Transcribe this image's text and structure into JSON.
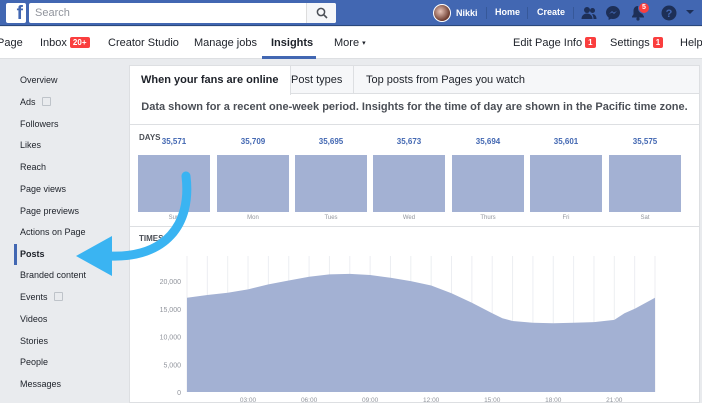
{
  "topbar": {
    "search_placeholder": "Search",
    "user_name": "Nikki",
    "home": "Home",
    "create": "Create",
    "notifications_count": "5",
    "logo": "f"
  },
  "page_tabs": [
    {
      "label": "Page"
    },
    {
      "label": "Inbox",
      "badge": "20+"
    },
    {
      "label": "Creator Studio"
    },
    {
      "label": "Manage jobs"
    },
    {
      "label": "Insights"
    },
    {
      "label": "More"
    },
    {
      "label": "Edit Page Info",
      "badge": "1"
    },
    {
      "label": "Settings",
      "badge": "1"
    },
    {
      "label": "Help"
    }
  ],
  "sidebar": {
    "items": [
      {
        "label": "Overview"
      },
      {
        "label": "Ads"
      },
      {
        "label": "Followers"
      },
      {
        "label": "Likes"
      },
      {
        "label": "Reach"
      },
      {
        "label": "Page views"
      },
      {
        "label": "Page previews"
      },
      {
        "label": "Actions on Page"
      },
      {
        "label": "Posts"
      },
      {
        "label": "Branded content"
      },
      {
        "label": "Events"
      },
      {
        "label": "Videos"
      },
      {
        "label": "Stories"
      },
      {
        "label": "People"
      },
      {
        "label": "Messages"
      }
    ]
  },
  "subtabs": [
    {
      "label": "When your fans are online"
    },
    {
      "label": "Post types"
    },
    {
      "label": "Top posts from Pages you watch"
    }
  ],
  "notice": "Data shown for a recent one-week period. Insights for the time of day are shown in the Pacific time zone.",
  "days_label": "DAYS",
  "times_label": "TIMES",
  "days": [
    {
      "name": "Sun",
      "value": "35,571"
    },
    {
      "name": "Mon",
      "value": "35,709"
    },
    {
      "name": "Tues",
      "value": "35,695"
    },
    {
      "name": "Wed",
      "value": "35,673"
    },
    {
      "name": "Thurs",
      "value": "35,694"
    },
    {
      "name": "Fri",
      "value": "35,601"
    },
    {
      "name": "Sat",
      "value": "35,575"
    }
  ],
  "chart_data": {
    "type": "area",
    "ylim": [
      0,
      22000
    ],
    "y_ticks": [
      "20,000",
      "15,000",
      "10,000",
      "5,000",
      "0"
    ],
    "x_ticks": [
      "03:00",
      "06:00",
      "09:00",
      "12:00",
      "15:00",
      "18:00",
      "21:00"
    ],
    "x": [
      0,
      1,
      2,
      3,
      4,
      5,
      6,
      7,
      8,
      9,
      10,
      11,
      12,
      13,
      14,
      15,
      15.5,
      16,
      17,
      18,
      19,
      20,
      21,
      21.5,
      22,
      23
    ],
    "values": [
      17000,
      17500,
      17900,
      18500,
      19400,
      20100,
      20800,
      21200,
      21300,
      21100,
      20600,
      20000,
      19200,
      17800,
      16100,
      14200,
      13300,
      12800,
      12500,
      12400,
      12500,
      12600,
      13000,
      14200,
      15000,
      17000
    ],
    "color": "#a3b1d3"
  },
  "colors": {
    "brand": "#4267b2",
    "bar": "#a3b1d3",
    "alert": "#fa3e3e",
    "arrow": "#3ab4f2"
  }
}
